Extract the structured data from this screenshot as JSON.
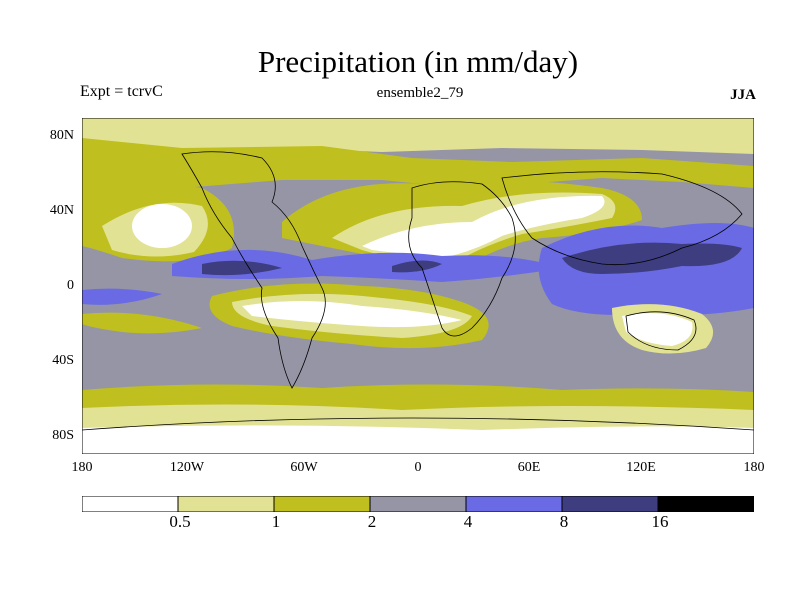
{
  "title": "Precipitation (in mm/day)",
  "expt_label": "Expt = tcrvC",
  "ensemble_label": "ensemble2_79",
  "season_label": "JJA",
  "lat_ticks": [
    "80N",
    "40N",
    "0",
    "40S",
    "80S"
  ],
  "lon_ticks": [
    "180",
    "120W",
    "60W",
    "0",
    "60E",
    "120E",
    "180"
  ],
  "colorbar": {
    "colors": [
      "#ffffff",
      "#e2e294",
      "#bfbf1f",
      "#9595a6",
      "#6a6ae4",
      "#3d3d80",
      "#000000"
    ],
    "boundaries": [
      "0.5",
      "1",
      "2",
      "4",
      "8",
      "16"
    ]
  }
}
